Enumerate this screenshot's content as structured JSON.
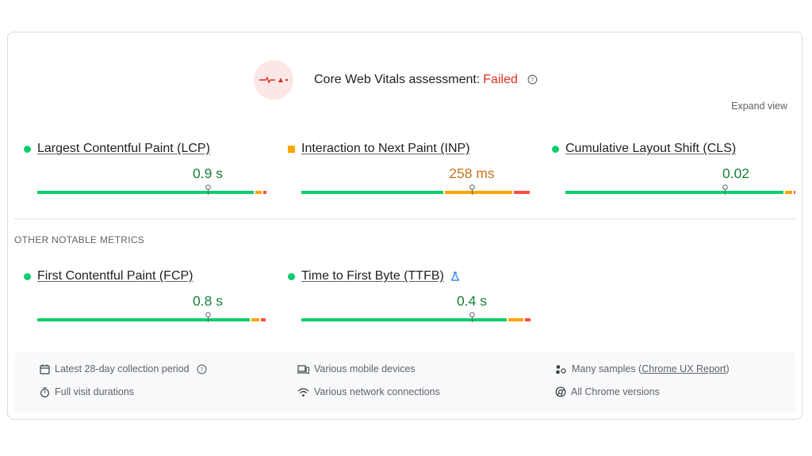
{
  "assessment": {
    "title": "Core Web Vitals assessment:",
    "status": "Failed",
    "status_color": "#d93025"
  },
  "expand_view_label": "Expand view",
  "core_metrics": [
    {
      "name": "Largest Contentful Paint (LCP)",
      "value": "0.9 s",
      "rating": "good"
    },
    {
      "name": "Interaction to Next Paint (INP)",
      "value": "258 ms",
      "rating": "average"
    },
    {
      "name": "Cumulative Layout Shift (CLS)",
      "value": "0.02",
      "rating": "good"
    }
  ],
  "other_section_label": "OTHER NOTABLE METRICS",
  "other_metrics": [
    {
      "name": "First Contentful Paint (FCP)",
      "value": "0.8 s",
      "rating": "good"
    },
    {
      "name": "Time to First Byte (TTFB)",
      "value": "0.4 s",
      "rating": "good",
      "experimental_icon": "flask-icon"
    }
  ],
  "info": {
    "collection_period": "Latest 28-day collection period",
    "visit_durations": "Full visit durations",
    "devices": "Various mobile devices",
    "network": "Various network connections",
    "samples_prefix": "Many samples (",
    "samples_link": "Chrome UX Report",
    "samples_suffix": ")",
    "chrome_versions": "All Chrome versions"
  },
  "colors": {
    "good": "#0cce6b",
    "average": "#ffa400",
    "poor": "#ff4e42"
  }
}
